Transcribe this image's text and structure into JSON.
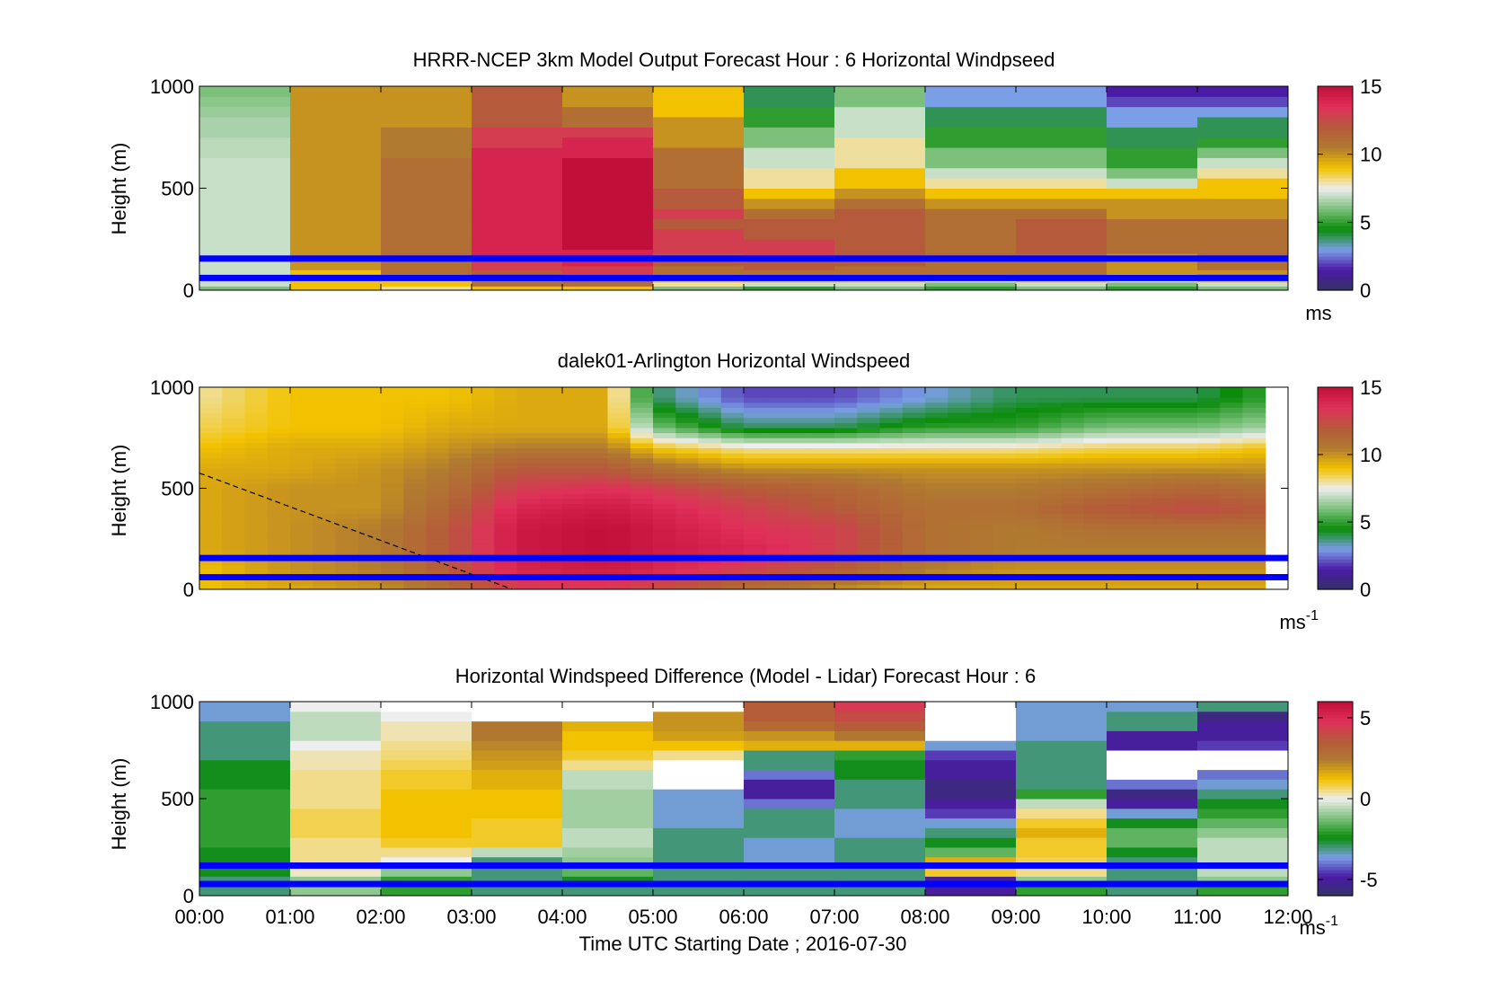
{
  "figure": {
    "xlabel": "Time UTC  Starting Date ; 2016-07-30",
    "x_ticks": [
      "00:00",
      "01:00",
      "02:00",
      "03:00",
      "04:00",
      "05:00",
      "06:00",
      "07:00",
      "08:00",
      "09:00",
      "10:00",
      "11:00",
      "12:00"
    ]
  },
  "colormap": {
    "stops": [
      "#333366",
      "#4b1aa6",
      "#7b9fe6",
      "#0a8c0a",
      "#7cc07c",
      "#eeeeee",
      "#f2c200",
      "#b07a30",
      "#b55a3a",
      "#e0305a",
      "#c0103a"
    ]
  },
  "chart_data": [
    {
      "type": "heatmap",
      "title": "HRRR-NCEP 3km Model Output   Forecast Hour : 6 Horizontal Windpseed",
      "ylabel": "Height (m)",
      "xlim": [
        0,
        12
      ],
      "ylim": [
        0,
        1000
      ],
      "y_ticks": [
        "0",
        "500",
        "1000"
      ],
      "colorbar": {
        "min": 0,
        "max": 15,
        "ticks": [
          "0",
          "5",
          "10",
          "15"
        ],
        "unit": "ms"
      },
      "reference_lines_m": [
        60,
        155
      ],
      "reference_line_color": "#0000ff",
      "column_hours": [
        0,
        1,
        2,
        3,
        4,
        5,
        6,
        7,
        8,
        9,
        10,
        11
      ],
      "height_bins_m": [
        0,
        20,
        40,
        60,
        80,
        100,
        120,
        140,
        160,
        180,
        200,
        250,
        300,
        350,
        400,
        450,
        500,
        550,
        600,
        650,
        700,
        750,
        800,
        850,
        900,
        950
      ],
      "values": [
        [
          6,
          7,
          7,
          7,
          7,
          7,
          7,
          7,
          7,
          7,
          7,
          7,
          7,
          7,
          7,
          7,
          7,
          7,
          7,
          6.8,
          6.8,
          6.6,
          6.6,
          6.4,
          6.2,
          6
        ],
        [
          9,
          9,
          9,
          9,
          9,
          10,
          10,
          10,
          10,
          10,
          10,
          10,
          10,
          10,
          10,
          10,
          10,
          10,
          10,
          10,
          10,
          10,
          10,
          10,
          10,
          10
        ],
        [
          8,
          9,
          9,
          10,
          11,
          11,
          11,
          11,
          11,
          11,
          11,
          11,
          11,
          11,
          11,
          11,
          11,
          11,
          11,
          10.5,
          10.5,
          10.5,
          10,
          10,
          10,
          10
        ],
        [
          9,
          11,
          11,
          12,
          12,
          13,
          13,
          13,
          14,
          14,
          14,
          14,
          14,
          14,
          14,
          14,
          14,
          14,
          14,
          14,
          13,
          13,
          12,
          12,
          12,
          12
        ],
        [
          9,
          11,
          12,
          12,
          13,
          13,
          14,
          14,
          14,
          14,
          15,
          15,
          15,
          15,
          15,
          15,
          15,
          15,
          15,
          14,
          14,
          13,
          11,
          11,
          10,
          10
        ],
        [
          6,
          8,
          9,
          10,
          11,
          11,
          12,
          12,
          12,
          13,
          13,
          13,
          12,
          13,
          12,
          12,
          11,
          11,
          11,
          11,
          10,
          10,
          10,
          9,
          9,
          9
        ],
        [
          5,
          7,
          9,
          10,
          11,
          12,
          12,
          12,
          13,
          13,
          13,
          12,
          12,
          11,
          10,
          9,
          8,
          8,
          7,
          7,
          6,
          6,
          5,
          5,
          4,
          4
        ],
        [
          6,
          7,
          9,
          10,
          11,
          11,
          12,
          12,
          12,
          12,
          12,
          12,
          12,
          12,
          11,
          10,
          9,
          9,
          8,
          8,
          8,
          7,
          7,
          7,
          6,
          6
        ],
        [
          5,
          6,
          8,
          10,
          11,
          11,
          11,
          11,
          11,
          11,
          11,
          11,
          11,
          11,
          10,
          9,
          8,
          7,
          6,
          6,
          5,
          5,
          4,
          4,
          3,
          3
        ],
        [
          6,
          7,
          9,
          10,
          11,
          11,
          11,
          11,
          11,
          12,
          12,
          12,
          12,
          11,
          10,
          9,
          8,
          7,
          6,
          6,
          5,
          5,
          4,
          4,
          3,
          3
        ],
        [
          5,
          6,
          8,
          9,
          10,
          10,
          10,
          10,
          10,
          11,
          11,
          11,
          11,
          10,
          10,
          9,
          7,
          6,
          5,
          5,
          4,
          4,
          3,
          3,
          2,
          1.5
        ],
        [
          6,
          7,
          9,
          10,
          10,
          11,
          11,
          11,
          11,
          11,
          11,
          11,
          11,
          10,
          10,
          9,
          9,
          8,
          7,
          6,
          5,
          4,
          4,
          3,
          2,
          1.5
        ]
      ]
    },
    {
      "type": "heatmap",
      "title": "dalek01-Arlington  Horizontal Windspeed",
      "ylabel": "Height (m)",
      "xlim": [
        0,
        12
      ],
      "ylim": [
        0,
        1000
      ],
      "y_ticks": [
        "0",
        "500",
        "1000"
      ],
      "colorbar": {
        "min": 0,
        "max": 15,
        "ticks": [
          "0",
          "5",
          "10",
          "15"
        ],
        "unit": "ms",
        "unit_exponent": "-1"
      },
      "reference_lines_m": [
        60,
        155
      ],
      "reference_line_color": "#0000ff",
      "dashed_line": {
        "x": [
          0,
          3.45
        ],
        "y": [
          575,
          0
        ]
      },
      "column_width_hours": 0.25,
      "data_extent_hours": [
        0,
        11.75
      ],
      "profile_keyframes": [
        {
          "hour": 0.0,
          "levels": [
            9,
            9,
            9.5,
            9.5,
            9.5,
            9.5,
            9.5,
            9,
            8.5,
            8
          ]
        },
        {
          "hour": 1.0,
          "levels": [
            9.5,
            10,
            10,
            10,
            10,
            10,
            9.5,
            9.5,
            9,
            9
          ]
        },
        {
          "hour": 2.0,
          "levels": [
            10,
            10.5,
            10.5,
            10.5,
            10,
            10,
            10,
            9.5,
            9,
            9
          ]
        },
        {
          "hour": 2.75,
          "levels": [
            11,
            12,
            12,
            12,
            11.5,
            11,
            10.5,
            10,
            9.5,
            9
          ]
        },
        {
          "hour": 3.5,
          "levels": [
            13,
            14,
            14.5,
            14.5,
            14,
            13,
            12,
            10.5,
            9.5,
            9.5
          ]
        },
        {
          "hour": 4.5,
          "levels": [
            13,
            14.5,
            15,
            15,
            14.5,
            13.5,
            12,
            10.5,
            9.5,
            9.5
          ]
        },
        {
          "hour": 5.0,
          "levels": [
            12.5,
            14,
            14.5,
            14.5,
            14,
            13,
            11,
            9,
            6,
            4
          ]
        },
        {
          "hour": 6.0,
          "levels": [
            11,
            13,
            14,
            13.5,
            13,
            12,
            10,
            8,
            4,
            2
          ]
        },
        {
          "hour": 7.0,
          "levels": [
            10,
            12,
            13,
            13,
            12,
            11.5,
            10,
            8,
            4,
            2
          ]
        },
        {
          "hour": 8.0,
          "levels": [
            9.5,
            10.5,
            11,
            11,
            11,
            10.5,
            10,
            8,
            5,
            3
          ]
        },
        {
          "hour": 9.0,
          "levels": [
            9.5,
            10,
            10.5,
            10.5,
            11,
            10.5,
            10,
            8,
            5,
            4
          ]
        },
        {
          "hour": 10.0,
          "levels": [
            9.5,
            10,
            10.5,
            11,
            12,
            11,
            10,
            8.5,
            6,
            4
          ]
        },
        {
          "hour": 11.0,
          "levels": [
            9.5,
            10,
            10.5,
            11,
            12.5,
            11.5,
            10,
            8.5,
            6,
            4
          ]
        },
        {
          "hour": 11.75,
          "levels": [
            9.5,
            10,
            10.5,
            11,
            12,
            11,
            10,
            9,
            6.5,
            5
          ]
        }
      ],
      "profile_heights_m": [
        0,
        100,
        200,
        300,
        400,
        500,
        600,
        700,
        800,
        950
      ],
      "missing_data_color": "#808080"
    },
    {
      "type": "heatmap",
      "title": "Horizontal Windspeed Difference (Model - Lidar) Forecast Hour : 6",
      "ylabel": "Height (m)",
      "xlim": [
        0,
        12
      ],
      "ylim": [
        0,
        1000
      ],
      "y_ticks": [
        "0",
        "500",
        "1000"
      ],
      "colorbar": {
        "min": -6,
        "max": 6,
        "ticks": [
          "-5",
          "0",
          "5"
        ],
        "unit": "ms",
        "unit_exponent": "-1"
      },
      "reference_lines_m": [
        60,
        155
      ],
      "reference_line_color": "#0000ff",
      "column_hours": [
        0,
        1,
        2,
        3,
        4,
        5,
        6,
        7,
        8,
        9,
        10,
        11
      ],
      "height_bins_m": [
        0,
        50,
        100,
        150,
        200,
        250,
        300,
        350,
        400,
        450,
        500,
        550,
        600,
        650,
        700,
        750,
        800,
        850,
        900,
        950
      ],
      "values": [
        [
          -3,
          -3,
          -2.5,
          -2.5,
          -2.5,
          -2,
          -2,
          -2,
          -2,
          -2,
          -2,
          -2.5,
          -2.5,
          -2.5,
          -3,
          -3,
          -3,
          -3,
          -3.5,
          -3.5
        ],
        [
          -1,
          -1,
          0.2,
          0.5,
          0.5,
          0.5,
          0.8,
          0.8,
          0.8,
          0.5,
          0.5,
          0.5,
          0.5,
          0.3,
          0.3,
          0,
          -0.5,
          -0.5,
          -0.5,
          0
        ],
        [
          -2,
          -2,
          -1,
          0,
          0.5,
          1,
          1.2,
          1.2,
          1.2,
          1.2,
          1.2,
          1,
          1,
          0.8,
          0.6,
          0.5,
          0.3,
          0.3,
          0,
          null
        ],
        [
          -3,
          -3,
          -3,
          -3,
          -0.5,
          1,
          1,
          1,
          1.2,
          1.2,
          1.2,
          1.5,
          1.5,
          1.8,
          2,
          2.2,
          2.5,
          2.5,
          null,
          null
        ],
        [
          -3,
          -2.5,
          -1.5,
          -1,
          -0.8,
          -0.5,
          -0.5,
          -0.8,
          -0.8,
          -0.8,
          -0.8,
          -0.5,
          -0.5,
          0.5,
          1,
          1.2,
          1.2,
          1.5,
          null,
          null
        ],
        [
          -3,
          -3,
          -3,
          -3,
          -3,
          -3,
          -3,
          -3.5,
          -3.5,
          -3.5,
          -3.5,
          null,
          null,
          null,
          0.5,
          1.2,
          1.8,
          2,
          2,
          null
        ],
        [
          -3,
          -3,
          -3,
          -3.5,
          -3.5,
          -3.5,
          -3,
          -3,
          -3,
          -4,
          -5,
          -5,
          -4,
          -3,
          -3,
          1.5,
          2,
          3,
          3.5,
          3.5
        ],
        [
          -3,
          -3,
          -3,
          -3,
          -3,
          -3,
          -3.5,
          -3.5,
          -3.5,
          -3,
          -3,
          -3,
          -2.5,
          -2.5,
          -2,
          1.5,
          2.5,
          3.5,
          4,
          4.5
        ],
        [
          -5,
          -5,
          1,
          1.5,
          -1.5,
          -2.5,
          -3,
          -3.5,
          -4.5,
          -5,
          -5.5,
          -5.5,
          -5,
          -5,
          -4.5,
          -3.5,
          null,
          null,
          null,
          null
        ],
        [
          -2,
          -1,
          0.5,
          0.8,
          1,
          1,
          1.5,
          1,
          0.5,
          -0.5,
          -2,
          -3,
          -3,
          -3,
          -3,
          -3,
          -3.5,
          -3.5,
          -3.5,
          -3.5
        ],
        [
          -3,
          -3,
          -3,
          -3,
          -2.5,
          -1.5,
          -1.5,
          -2.5,
          -3.5,
          -5,
          -5.5,
          -4,
          null,
          null,
          null,
          -5,
          -5,
          -3,
          -3,
          -3.5
        ],
        [
          -2,
          -1,
          -0.5,
          -0.5,
          -0.5,
          -0.5,
          -1,
          -1.5,
          -2,
          -2.5,
          -3,
          -3.5,
          -4,
          null,
          null,
          -4.5,
          -5,
          -5,
          -5.5,
          -3
        ]
      ],
      "missing_data_color": "#808080"
    }
  ]
}
